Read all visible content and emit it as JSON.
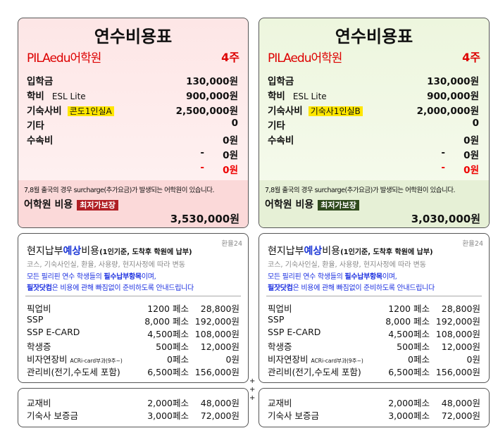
{
  "panels": [
    {
      "title": "연수비용표",
      "school": "PILAedu어학원",
      "weeks": "4주",
      "fees": [
        {
          "label": "입학금",
          "amount": "130,000원"
        },
        {
          "label": "학비",
          "note": "ESL Lite",
          "amount": "900,000원"
        },
        {
          "label": "기숙사비",
          "note": "콘도1인실A",
          "amount": "2,500,000원"
        },
        {
          "label": "기타",
          "amount": "0"
        },
        {
          "label": "수속비",
          "amount": "0원"
        },
        {
          "prefix": "-",
          "amount": "0원"
        },
        {
          "prefix": "-",
          "amount": "0원"
        }
      ],
      "surcharge_note": "7,8월 출국의 경우 surcharge(추가요금)가 발생되는 어학원이 있습니다.",
      "total_label": "어학원 비용",
      "badge": "최저가보장",
      "total": "3,530,000원",
      "local": {
        "rate": "환율24",
        "heading": [
          "현지납부",
          "예상",
          "비용",
          "(1인기준, 도착후 학원에 납부)"
        ],
        "variance": "코스, 기숙사인실, 환율, 사용량, 현지사정에 따라 변동",
        "notice": [
          [
            "모든 필리핀 연수 학생들의 ",
            "필수납부항목",
            "이며,"
          ],
          [
            "필잣닷컴",
            "은 비용에 관해 빠짐없이 준비하도록 안내드립니다"
          ]
        ],
        "rows": [
          {
            "label": "픽업비",
            "peso": "1200 페소",
            "won": "28,800원"
          },
          {
            "label": "SSP",
            "peso": "8,000 페소",
            "won": "192,000원"
          },
          {
            "label": "SSP E-CARD",
            "peso": "4,500페소",
            "won": "108,000원"
          },
          {
            "label": "학생증",
            "peso": "500페소",
            "won": "12,000원"
          },
          {
            "label": "비자연장비",
            "note": "ACRi-card부과(9주~)",
            "peso": "0페소",
            "won": "0원"
          },
          {
            "label": "관리비(전기,수도세 포함)",
            "peso": "6,500페소",
            "won": "156,000원"
          }
        ]
      },
      "extra": [
        {
          "label": "교재비",
          "peso": "2,000페소",
          "won": "48,000원"
        },
        {
          "label": "기숙사 보증금",
          "peso": "3,000페소",
          "won": "72,000원"
        }
      ]
    },
    {
      "title": "연수비용표",
      "school": "PILAedu어학원",
      "weeks": "4주",
      "fees": [
        {
          "label": "입학금",
          "amount": "130,000원"
        },
        {
          "label": "학비",
          "note": "ESL Lite",
          "amount": "900,000원"
        },
        {
          "label": "기숙사비",
          "note": "기숙사1인실B",
          "amount": "2,000,000원"
        },
        {
          "label": "기타",
          "amount": "0"
        },
        {
          "label": "수속비",
          "amount": "0원"
        },
        {
          "prefix": "-",
          "amount": "0원"
        },
        {
          "prefix": "-",
          "amount": "0원"
        }
      ],
      "surcharge_note": "7,8월 출국의 경우 surcharge(추가요금)가 발생되는 어학원이 있습니다.",
      "total_label": "어학원 비용",
      "badge": "최저가보장",
      "total": "3,030,000원",
      "local": {
        "rate": "환율24",
        "heading": [
          "현지납부",
          "예상",
          "비용",
          "(1인기준, 도착후 학원에 납부)"
        ],
        "variance": "코스, 기숙사인실, 환율, 사용량, 현지사정에 따라 변동",
        "notice": [
          [
            "모든 필리핀 연수 학생들의 ",
            "필수납부항목",
            "이며,"
          ],
          [
            "필잣닷컴",
            "은 비용에 관해 빠짐없이 준비하도록 안내드립니다"
          ]
        ],
        "rows": [
          {
            "label": "픽업비",
            "peso": "1200 페소",
            "won": "28,800원"
          },
          {
            "label": "SSP",
            "peso": "8,000 페소",
            "won": "192,000원"
          },
          {
            "label": "SSP E-CARD",
            "peso": "4,500페소",
            "won": "108,000원"
          },
          {
            "label": "학생증",
            "peso": "500페소",
            "won": "12,000원"
          },
          {
            "label": "비자연장비",
            "note": "ACRi-card부과(9주~)",
            "peso": "0페소",
            "won": "0원"
          },
          {
            "label": "관리비(전기,수도세 포함)",
            "peso": "6,500페소",
            "won": "156,000원"
          }
        ]
      },
      "extra": [
        {
          "label": "교재비",
          "peso": "2,000페소",
          "won": "48,000원"
        },
        {
          "label": "기숙사 보증금",
          "peso": "3,000페소",
          "won": "72,000원"
        }
      ]
    }
  ]
}
